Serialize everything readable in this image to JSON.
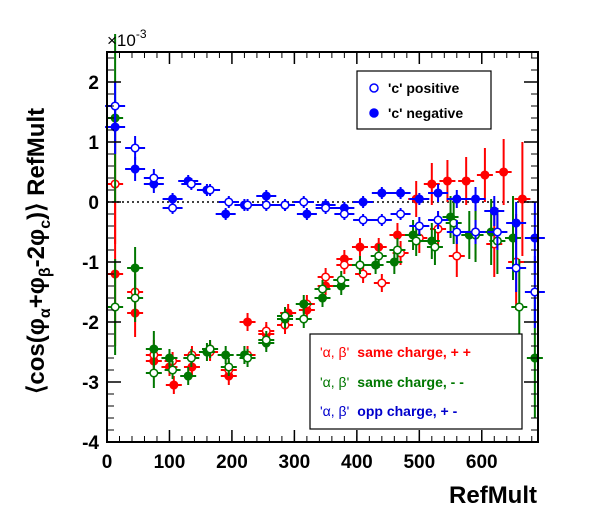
{
  "chart_data": {
    "type": "scatter",
    "xlabel": "RefMult",
    "ylabel": "⟨cos(φα+φβ-2φc)⟩ RefMult",
    "ylabel_parts": {
      "open": "⟨cos(φ",
      "sub_alpha": "α",
      "plus": "+φ",
      "sub_beta": "β",
      "minus": "-2φ",
      "sub_c": "c",
      "close": ")⟩ RefMult"
    },
    "y_exponent_label": "×10",
    "y_exponent_power": "-3",
    "xlim": [
      0,
      690
    ],
    "ylim": [
      -4,
      2.5
    ],
    "x_ticks": [
      0,
      100,
      200,
      300,
      400,
      500,
      600
    ],
    "x_tick_labels": [
      "0",
      "100",
      "200",
      "300",
      "400",
      "500",
      "600"
    ],
    "y_ticks": [
      -4,
      -3,
      -2,
      -1,
      0,
      1,
      2
    ],
    "y_tick_labels": [
      "-4",
      "-3",
      "-2",
      "-1",
      "0",
      "1",
      "2"
    ],
    "zero_line": true,
    "grid": false,
    "legends": {
      "charge": [
        {
          "label": "'c' positive",
          "marker": "open",
          "color": "#0000ff"
        },
        {
          "label": "'c' negative",
          "marker": "filled",
          "color": "#0000ff"
        }
      ],
      "pairs": [
        {
          "greek": "'α, β'",
          "label": "same charge, + +",
          "color": "#ff0000"
        },
        {
          "greek": "'α, β'",
          "label": "same charge, - -",
          "color": "#007700"
        },
        {
          "greek": "'α, β'",
          "label": "opp charge, + -",
          "color": "#0000cc"
        }
      ]
    },
    "series": [
      {
        "name": "same charge, + +",
        "color": "#ff0000",
        "marker": "filled",
        "dx": 8,
        "points": [
          [
            13,
            -1.2,
            1.2
          ],
          [
            45,
            -1.85,
            0.4
          ],
          [
            75,
            -2.65,
            0.25
          ],
          [
            100,
            -2.75,
            0.15
          ],
          [
            107,
            -3.05,
            0.15
          ],
          [
            136,
            -2.75,
            0.15
          ],
          [
            165,
            -2.45,
            0.15
          ],
          [
            195,
            -2.9,
            0.15
          ],
          [
            225,
            -2.0,
            0.15
          ],
          [
            255,
            -2.2,
            0.15
          ],
          [
            290,
            -1.85,
            0.15
          ],
          [
            320,
            -1.8,
            0.15
          ],
          [
            350,
            -1.4,
            0.15
          ],
          [
            380,
            -0.95,
            0.15
          ],
          [
            405,
            -0.75,
            0.15
          ],
          [
            435,
            -0.75,
            0.15
          ],
          [
            465,
            -0.55,
            0.2
          ],
          [
            495,
            0.05,
            0.3
          ],
          [
            520,
            0.3,
            0.35
          ],
          [
            545,
            0.35,
            0.35
          ],
          [
            575,
            0.35,
            0.4
          ],
          [
            605,
            0.45,
            0.45
          ],
          [
            635,
            0.5,
            0.55
          ],
          [
            665,
            0.05,
            0.95
          ]
        ]
      },
      {
        "name": "same charge, + +",
        "color": "#ff0000",
        "marker": "open",
        "dx": 8,
        "points": [
          [
            13,
            0.3,
            1.0
          ],
          [
            45,
            -1.5,
            0.4
          ],
          [
            75,
            -2.55,
            0.25
          ],
          [
            105,
            -2.65,
            0.15
          ],
          [
            136,
            -2.55,
            0.15
          ],
          [
            165,
            -2.5,
            0.15
          ],
          [
            195,
            -2.8,
            0.15
          ],
          [
            225,
            -2.55,
            0.15
          ],
          [
            255,
            -2.15,
            0.15
          ],
          [
            285,
            -2.05,
            0.15
          ],
          [
            320,
            -1.7,
            0.15
          ],
          [
            350,
            -1.25,
            0.15
          ],
          [
            380,
            -1.05,
            0.15
          ],
          [
            410,
            -1.2,
            0.15
          ],
          [
            440,
            -1.35,
            0.15
          ],
          [
            470,
            -0.85,
            0.2
          ],
          [
            500,
            -0.6,
            0.25
          ],
          [
            530,
            -0.45,
            0.3
          ],
          [
            560,
            -0.9,
            0.35
          ],
          [
            590,
            -0.5,
            0.45
          ],
          [
            620,
            -0.7,
            0.55
          ],
          [
            655,
            -1.0,
            0.8
          ]
        ]
      },
      {
        "name": "same charge, - -",
        "color": "#007700",
        "marker": "filled",
        "dx": 8,
        "points": [
          [
            13,
            1.4,
            1.4
          ],
          [
            45,
            -1.1,
            0.35
          ],
          [
            75,
            -2.45,
            0.3
          ],
          [
            100,
            -2.6,
            0.15
          ],
          [
            130,
            -2.9,
            0.15
          ],
          [
            160,
            -2.5,
            0.15
          ],
          [
            190,
            -2.55,
            0.15
          ],
          [
            220,
            -2.55,
            0.15
          ],
          [
            255,
            -2.35,
            0.15
          ],
          [
            285,
            -1.95,
            0.15
          ],
          [
            315,
            -1.7,
            0.15
          ],
          [
            345,
            -1.6,
            0.15
          ],
          [
            375,
            -1.4,
            0.15
          ],
          [
            405,
            -1.05,
            0.15
          ],
          [
            430,
            -1.05,
            0.15
          ],
          [
            460,
            -1.0,
            0.2
          ],
          [
            490,
            -0.55,
            0.25
          ],
          [
            520,
            -0.65,
            0.3
          ],
          [
            550,
            -0.25,
            0.35
          ],
          [
            580,
            -0.55,
            0.4
          ],
          [
            615,
            -0.5,
            0.55
          ],
          [
            650,
            -0.6,
            0.7
          ],
          [
            685,
            -2.6,
            1.0
          ]
        ]
      },
      {
        "name": "same charge, - -",
        "color": "#007700",
        "marker": "open",
        "dx": 8,
        "points": [
          [
            13,
            -1.75,
            0.8
          ],
          [
            45,
            -1.6,
            0.4
          ],
          [
            75,
            -2.85,
            0.25
          ],
          [
            105,
            -2.8,
            0.15
          ],
          [
            135,
            -2.6,
            0.15
          ],
          [
            165,
            -2.45,
            0.15
          ],
          [
            195,
            -2.75,
            0.15
          ],
          [
            225,
            -2.6,
            0.15
          ],
          [
            255,
            -2.3,
            0.15
          ],
          [
            285,
            -1.9,
            0.15
          ],
          [
            315,
            -1.95,
            0.15
          ],
          [
            345,
            -1.45,
            0.15
          ],
          [
            375,
            -1.3,
            0.15
          ],
          [
            405,
            -1.05,
            0.15
          ],
          [
            435,
            -0.9,
            0.2
          ],
          [
            465,
            -0.8,
            0.2
          ],
          [
            495,
            -0.65,
            0.25
          ],
          [
            525,
            -0.75,
            0.3
          ],
          [
            555,
            -0.35,
            0.35
          ],
          [
            590,
            -0.55,
            0.45
          ],
          [
            625,
            -0.65,
            0.55
          ],
          [
            660,
            -1.75,
            0.8
          ]
        ]
      },
      {
        "name": "'c' negative",
        "color": "#0000ff",
        "marker": "filled",
        "dx": 10,
        "points": [
          [
            13,
            1.25,
            0.45
          ],
          [
            45,
            0.55,
            0.2
          ],
          [
            75,
            0.3,
            0.15
          ],
          [
            105,
            0.05,
            0.1
          ],
          [
            130,
            0.35,
            0.1
          ],
          [
            160,
            0.2,
            0.1
          ],
          [
            190,
            -0.2,
            0.1
          ],
          [
            220,
            -0.05,
            0.1
          ],
          [
            255,
            0.1,
            0.1
          ],
          [
            285,
            -0.05,
            0.1
          ],
          [
            320,
            -0.2,
            0.1
          ],
          [
            350,
            -0.05,
            0.1
          ],
          [
            380,
            -0.1,
            0.1
          ],
          [
            410,
            0.0,
            0.1
          ],
          [
            440,
            0.15,
            0.1
          ],
          [
            470,
            0.15,
            0.1
          ],
          [
            500,
            0.05,
            0.1
          ],
          [
            530,
            0.15,
            0.15
          ],
          [
            560,
            0.05,
            0.15
          ],
          [
            590,
            0.05,
            0.2
          ],
          [
            620,
            -0.15,
            0.25
          ],
          [
            655,
            -0.35,
            0.35
          ],
          [
            685,
            -0.6,
            0.6
          ]
        ]
      },
      {
        "name": "'c' positive",
        "color": "#0000ff",
        "marker": "open",
        "dx": 10,
        "points": [
          [
            13,
            1.6,
            0.4
          ],
          [
            45,
            0.9,
            0.2
          ],
          [
            75,
            0.4,
            0.15
          ],
          [
            105,
            -0.1,
            0.1
          ],
          [
            135,
            0.3,
            0.1
          ],
          [
            165,
            0.2,
            0.1
          ],
          [
            195,
            0.0,
            0.1
          ],
          [
            225,
            -0.05,
            0.1
          ],
          [
            255,
            -0.05,
            0.1
          ],
          [
            285,
            -0.05,
            0.1
          ],
          [
            315,
            0.0,
            0.1
          ],
          [
            350,
            -0.1,
            0.1
          ],
          [
            380,
            -0.2,
            0.1
          ],
          [
            410,
            -0.3,
            0.1
          ],
          [
            440,
            -0.3,
            0.1
          ],
          [
            470,
            -0.2,
            0.1
          ],
          [
            500,
            -0.4,
            0.15
          ],
          [
            530,
            -0.3,
            0.15
          ],
          [
            560,
            -0.5,
            0.2
          ],
          [
            590,
            -0.5,
            0.2
          ],
          [
            625,
            -0.5,
            0.3
          ],
          [
            655,
            -1.1,
            0.4
          ],
          [
            685,
            -1.5,
            0.6
          ]
        ]
      }
    ]
  }
}
